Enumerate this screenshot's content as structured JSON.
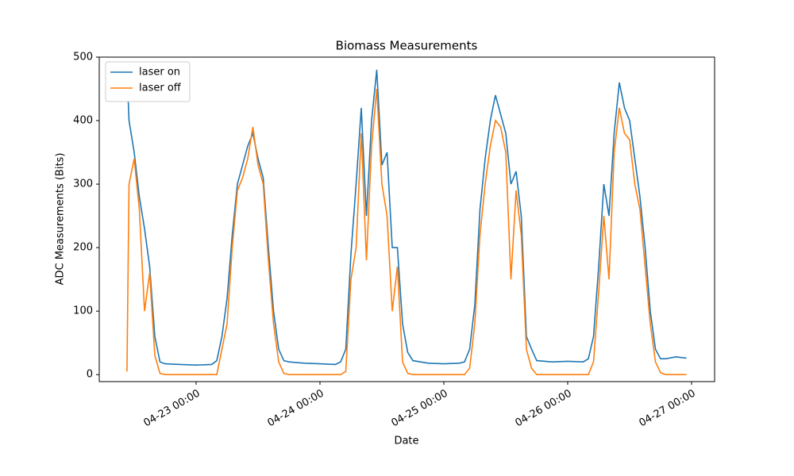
{
  "chart_data": {
    "type": "line",
    "title": "Biomass Measurements",
    "x_label": "Date",
    "y_label": "ADC Measurements (Bits)",
    "x": [
      "04-22 10:36",
      "04-22 11:00",
      "04-22 12:00",
      "04-22 13:00",
      "04-22 14:00",
      "04-22 15:00",
      "04-22 16:00",
      "04-22 17:00",
      "04-22 18:00",
      "04-22 21:00",
      "04-23 00:00",
      "04-23 03:00",
      "04-23 04:00",
      "04-23 05:00",
      "04-23 06:00",
      "04-23 07:00",
      "04-23 08:00",
      "04-23 09:00",
      "04-23 10:00",
      "04-23 11:00",
      "04-23 12:00",
      "04-23 13:00",
      "04-23 14:00",
      "04-23 15:00",
      "04-23 16:00",
      "04-23 17:00",
      "04-23 18:00",
      "04-23 21:00",
      "04-24 00:00",
      "04-24 03:00",
      "04-24 04:00",
      "04-24 05:00",
      "04-24 06:00",
      "04-24 07:00",
      "04-24 08:00",
      "04-24 09:00",
      "04-24 10:00",
      "04-24 11:00",
      "04-24 12:00",
      "04-24 13:00",
      "04-24 14:00",
      "04-24 15:00",
      "04-24 16:00",
      "04-24 17:00",
      "04-24 18:00",
      "04-24 21:00",
      "04-25 00:00",
      "04-25 03:00",
      "04-25 04:00",
      "04-25 05:00",
      "04-25 06:00",
      "04-25 07:00",
      "04-25 08:00",
      "04-25 09:00",
      "04-25 10:00",
      "04-25 11:00",
      "04-25 12:00",
      "04-25 13:00",
      "04-25 14:00",
      "04-25 15:00",
      "04-25 16:00",
      "04-25 17:00",
      "04-25 18:00",
      "04-25 21:00",
      "04-26 00:00",
      "04-26 03:00",
      "04-26 04:00",
      "04-26 05:00",
      "04-26 06:00",
      "04-26 07:00",
      "04-26 08:00",
      "04-26 09:00",
      "04-26 10:00",
      "04-26 11:00",
      "04-26 12:00",
      "04-26 13:00",
      "04-26 14:00",
      "04-26 15:00",
      "04-26 16:00",
      "04-26 17:00",
      "04-26 18:00",
      "04-26 19:00",
      "04-26 21:00",
      "04-26 23:00"
    ],
    "series": [
      {
        "name": "laser on",
        "color": "#1f77b4",
        "values": [
          480,
          400,
          350,
          280,
          230,
          170,
          60,
          20,
          17,
          16,
          15,
          16,
          22,
          60,
          120,
          220,
          300,
          330,
          360,
          380,
          340,
          310,
          200,
          100,
          40,
          22,
          20,
          18,
          17,
          16,
          20,
          40,
          190,
          300,
          420,
          250,
          400,
          480,
          330,
          350,
          200,
          200,
          80,
          35,
          22,
          18,
          17,
          18,
          20,
          40,
          110,
          260,
          340,
          400,
          440,
          410,
          380,
          300,
          320,
          250,
          60,
          40,
          22,
          20,
          21,
          20,
          25,
          60,
          170,
          300,
          250,
          380,
          460,
          420,
          400,
          340,
          280,
          200,
          100,
          40,
          25,
          25,
          28,
          26
        ]
      },
      {
        "name": "laser off",
        "color": "#ff7f0e",
        "values": [
          5,
          300,
          340,
          260,
          100,
          160,
          30,
          2,
          0,
          0,
          0,
          0,
          0,
          40,
          80,
          200,
          290,
          310,
          340,
          390,
          330,
          300,
          180,
          80,
          20,
          2,
          0,
          0,
          0,
          0,
          0,
          5,
          150,
          200,
          380,
          180,
          360,
          450,
          300,
          250,
          100,
          170,
          20,
          2,
          0,
          0,
          0,
          0,
          0,
          10,
          80,
          220,
          300,
          360,
          400,
          390,
          350,
          150,
          290,
          220,
          40,
          10,
          0,
          0,
          0,
          0,
          0,
          20,
          130,
          250,
          150,
          350,
          420,
          380,
          370,
          300,
          260,
          170,
          80,
          20,
          3,
          0,
          0,
          0
        ]
      }
    ],
    "xlim": [
      "04-22 05:14",
      "04-27 04:28"
    ],
    "xticks": [
      "04-23 00:00",
      "04-24 00:00",
      "04-25 00:00",
      "04-26 00:00",
      "04-27 00:00"
    ],
    "ylim": [
      -11,
      500
    ],
    "yticks": [
      0,
      100,
      200,
      300,
      400,
      500
    ],
    "grid": false,
    "legend": "upper-left"
  }
}
